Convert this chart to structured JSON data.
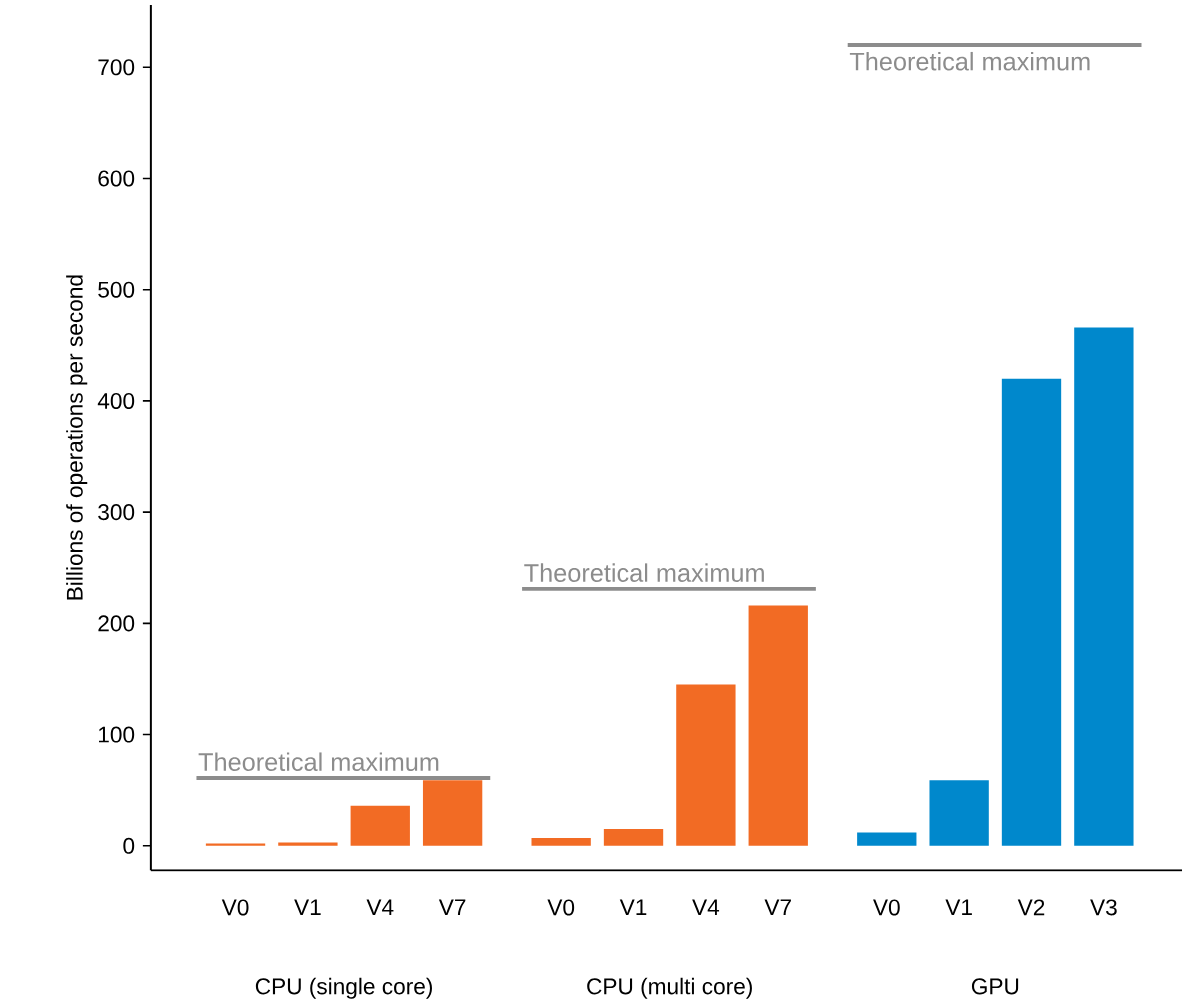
{
  "chart_data": {
    "type": "bar",
    "ylabel": "Billions of operations per second",
    "categories": [
      "V0",
      "V1",
      "V4",
      "V7",
      "V0",
      "V1",
      "V4",
      "V7",
      "V0",
      "V1",
      "V2",
      "V3"
    ],
    "values": [
      2,
      3,
      36,
      59,
      7,
      15,
      145,
      216,
      12,
      59,
      420,
      466
    ],
    "colors": [
      "#f26b24",
      "#f26b24",
      "#f26b24",
      "#f26b24",
      "#f26b24",
      "#f26b24",
      "#f26b24",
      "#f26b24",
      "#0088cc",
      "#0088cc",
      "#0088cc",
      "#0088cc"
    ],
    "annotations": [
      "CPU (single core)",
      "CPU (multi core)",
      "GPU"
    ],
    "ref_lines": [
      {
        "axis": "y",
        "value": 61,
        "label": "Theoretical maximum",
        "color": "#8c8c8c"
      },
      {
        "axis": "y",
        "value": 231,
        "label": "Theoretical maximum",
        "color": "#8c8c8c"
      },
      {
        "axis": "y",
        "value": 720,
        "label": "Theoretical maximum",
        "color": "#8c8c8c"
      }
    ],
    "ylim": [
      -22,
      756
    ],
    "yticks": [
      0,
      100,
      200,
      300,
      400,
      500,
      600,
      700
    ],
    "grid": false
  }
}
